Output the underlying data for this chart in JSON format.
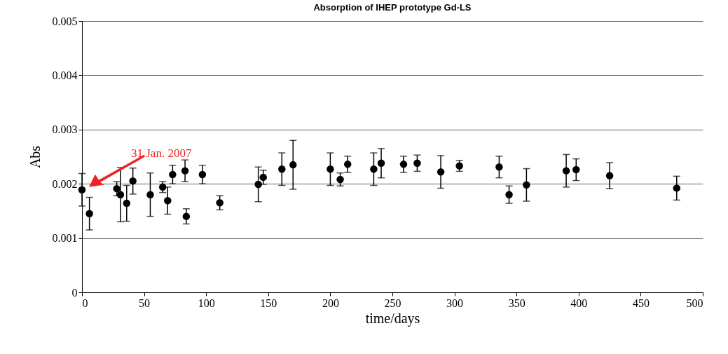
{
  "chart_data": {
    "type": "scatter",
    "title": "Absorption of IHEP prototype Gd-LS",
    "xlabel": "time/days",
    "ylabel": "Abs",
    "x": [
      0,
      6,
      28,
      31,
      36,
      41,
      55,
      65,
      69,
      73,
      83,
      84,
      97,
      111,
      142,
      146,
      161,
      170,
      200,
      208,
      214,
      235,
      241,
      259,
      270,
      289,
      304,
      336,
      344,
      358,
      390,
      398,
      425,
      479
    ],
    "series": [
      {
        "color": "#000000",
        "values": [
          0.00189,
          0.00145,
          0.00191,
          0.0018,
          0.00164,
          0.00205,
          0.0018,
          0.00194,
          0.00169,
          0.00217,
          0.00224,
          0.0014,
          0.00217,
          0.00165,
          0.00199,
          0.00212,
          0.00227,
          0.00235,
          0.00227,
          0.00208,
          0.00236,
          0.00227,
          0.00238,
          0.00236,
          0.00238,
          0.00222,
          0.00233,
          0.00231,
          0.0018,
          0.00198,
          0.00224,
          0.00226,
          0.00215,
          0.00192
        ],
        "errors": [
          0.0003,
          0.0003,
          0.00013,
          0.0005,
          0.00033,
          0.00024,
          0.0004,
          0.0001,
          0.00025,
          0.00017,
          0.0002,
          0.00014,
          0.00017,
          0.00013,
          0.00032,
          0.00013,
          0.0003,
          0.00045,
          0.0003,
          0.00012,
          0.00015,
          0.0003,
          0.00027,
          0.00015,
          0.00015,
          0.0003,
          0.0001,
          0.0002,
          0.00016,
          0.0003,
          0.0003,
          0.0002,
          0.00024,
          0.00022
        ]
      }
    ],
    "xlim": [
      0,
      500
    ],
    "xticks": [
      0,
      50,
      100,
      150,
      200,
      250,
      300,
      350,
      400,
      450,
      500
    ],
    "ylim": [
      0,
      0.005
    ],
    "yticks": [
      0,
      0.001,
      0.002,
      0.003,
      0.004,
      0.005
    ],
    "grid": "y",
    "marker": "circle",
    "annotations": [
      "31 Jan. 2007"
    ]
  }
}
